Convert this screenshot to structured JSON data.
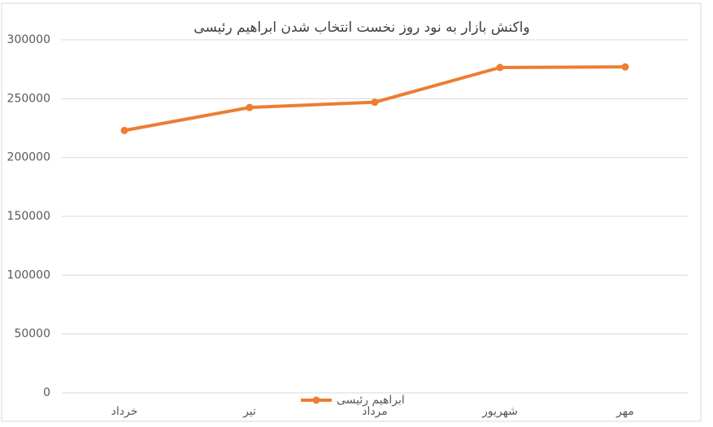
{
  "chart_data": {
    "type": "line",
    "title": "واکنش بازار به نود روز نخست انتخاب شدن ابراهیم رئیسی",
    "categories": [
      "خرداد",
      "تیر",
      "مرداد",
      "شهریور",
      "مهر"
    ],
    "series": [
      {
        "name": "ابراهیم رئیسی",
        "color": "#ed7d31",
        "values": [
          223000,
          242500,
          247000,
          276500,
          277000
        ]
      }
    ],
    "ylim": [
      0,
      300000
    ],
    "yticks": [
      0,
      50000,
      100000,
      150000,
      200000,
      250000,
      300000
    ],
    "grid": true,
    "legend": "bottom"
  }
}
